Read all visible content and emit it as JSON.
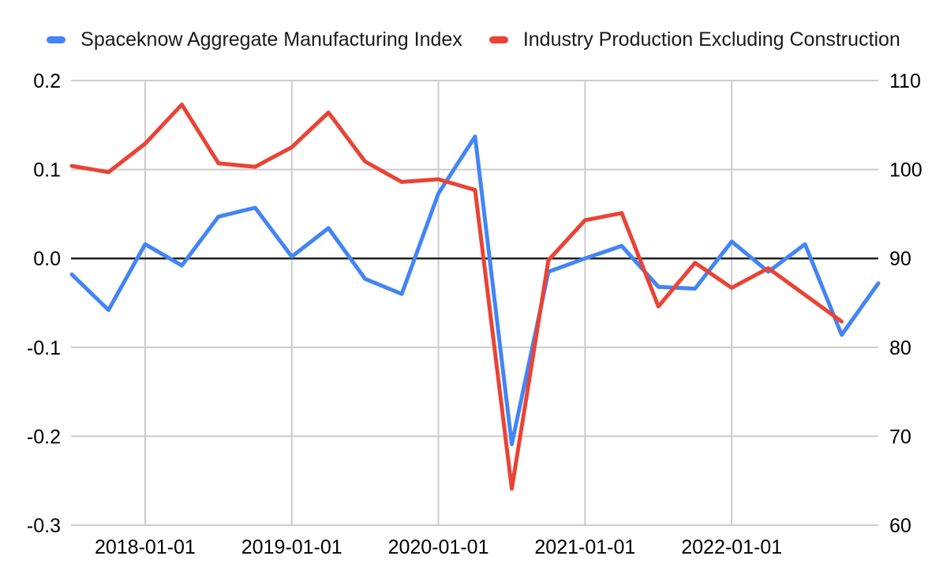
{
  "legend": {
    "items": [
      {
        "label": "Spaceknow Aggregate Manufacturing Index",
        "color": "#4285F4"
      },
      {
        "label": "Industry Production Excluding Construction",
        "color": "#EA4335"
      }
    ]
  },
  "chart_data": {
    "type": "line",
    "x": [
      "2017-07-01",
      "2017-10-01",
      "2018-01-01",
      "2018-04-01",
      "2018-07-01",
      "2018-10-01",
      "2019-01-01",
      "2019-04-01",
      "2019-07-01",
      "2019-10-01",
      "2020-01-01",
      "2020-04-01",
      "2020-07-01",
      "2020-10-01",
      "2021-01-01",
      "2021-04-01",
      "2021-07-01",
      "2021-10-01",
      "2022-01-01",
      "2022-04-01",
      "2022-07-01",
      "2022-10-01",
      "2023-01-01"
    ],
    "x_tick_labels": [
      "2018-01-01",
      "2019-01-01",
      "2020-01-01",
      "2021-01-01",
      "2022-01-01"
    ],
    "left_axis": {
      "min": -0.3,
      "max": 0.2,
      "ticks": [
        0.2,
        0.1,
        0.0,
        -0.1,
        -0.2,
        -0.3
      ],
      "tick_labels": [
        "0.2",
        "0.1",
        "0.0",
        "-0.1",
        "-0.2",
        "-0.3"
      ]
    },
    "right_axis": {
      "min": 60,
      "max": 110,
      "ticks": [
        110,
        100,
        90,
        80,
        70,
        60
      ],
      "tick_labels": [
        "110",
        "100",
        "90",
        "80",
        "70",
        "60"
      ]
    },
    "zero_line": {
      "left_value": 0.0,
      "color": "#212121"
    },
    "grid_color": "#cccccc",
    "background_color": "#ffffff",
    "series": [
      {
        "name": "Spaceknow Aggregate Manufacturing Index",
        "id": "spaceknow-aggregate-manufacturing-index",
        "axis": "left",
        "color": "#4285F4",
        "values": [
          -0.018,
          -0.058,
          0.016,
          -0.008,
          0.047,
          0.057,
          0.002,
          0.034,
          -0.023,
          -0.04,
          0.073,
          0.137,
          -0.209,
          -0.015,
          0.0,
          0.014,
          -0.032,
          -0.034,
          0.019,
          -0.015,
          0.016,
          -0.086,
          -0.028
        ]
      },
      {
        "name": "Industry Production Excluding Construction",
        "id": "industry-production-excluding-construction",
        "axis": "right",
        "color": "#EA4335",
        "values": [
          100.4,
          99.7,
          102.9,
          107.3,
          100.7,
          100.3,
          102.5,
          106.4,
          100.9,
          98.6,
          98.9,
          97.7,
          64.1,
          89.8,
          94.3,
          95.1,
          84.6,
          89.5,
          86.7,
          88.9,
          85.9,
          82.9,
          null
        ]
      }
    ]
  }
}
